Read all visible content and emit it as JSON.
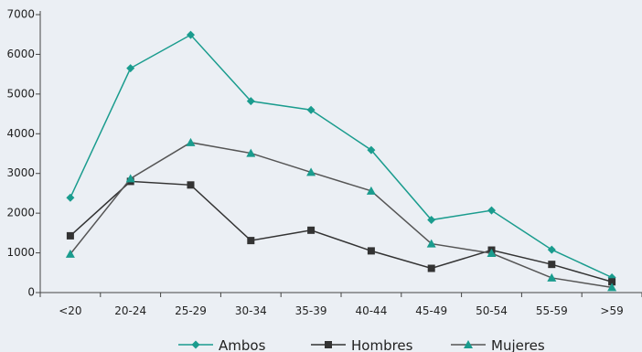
{
  "chart_data": {
    "type": "line",
    "categories": [
      "<20",
      "20-24",
      "25-29",
      "30-34",
      "35-39",
      "40-44",
      "45-49",
      "50-54",
      "55-59",
      ">59"
    ],
    "ylim": [
      0,
      7000
    ],
    "yticks": [
      0,
      1000,
      2000,
      3000,
      4000,
      5000,
      6000,
      7000
    ],
    "grid": false,
    "legend_position": "bottom",
    "series": [
      {
        "name": "Ambos",
        "marker": "diamond",
        "color": "#1a9c8e",
        "values": [
          2390,
          5650,
          6490,
          4820,
          4600,
          3590,
          1830,
          2070,
          1080,
          380
        ]
      },
      {
        "name": "Hombres",
        "marker": "square",
        "color": "#333333",
        "values": [
          1430,
          2800,
          2710,
          1310,
          1570,
          1050,
          610,
          1070,
          710,
          270
        ]
      },
      {
        "name": "Mujeres",
        "marker": "triangle",
        "color": "#1a9c8e",
        "line_color": "#555555",
        "values": [
          970,
          2870,
          3780,
          3510,
          3030,
          2560,
          1230,
          990,
          370,
          130
        ]
      }
    ]
  }
}
